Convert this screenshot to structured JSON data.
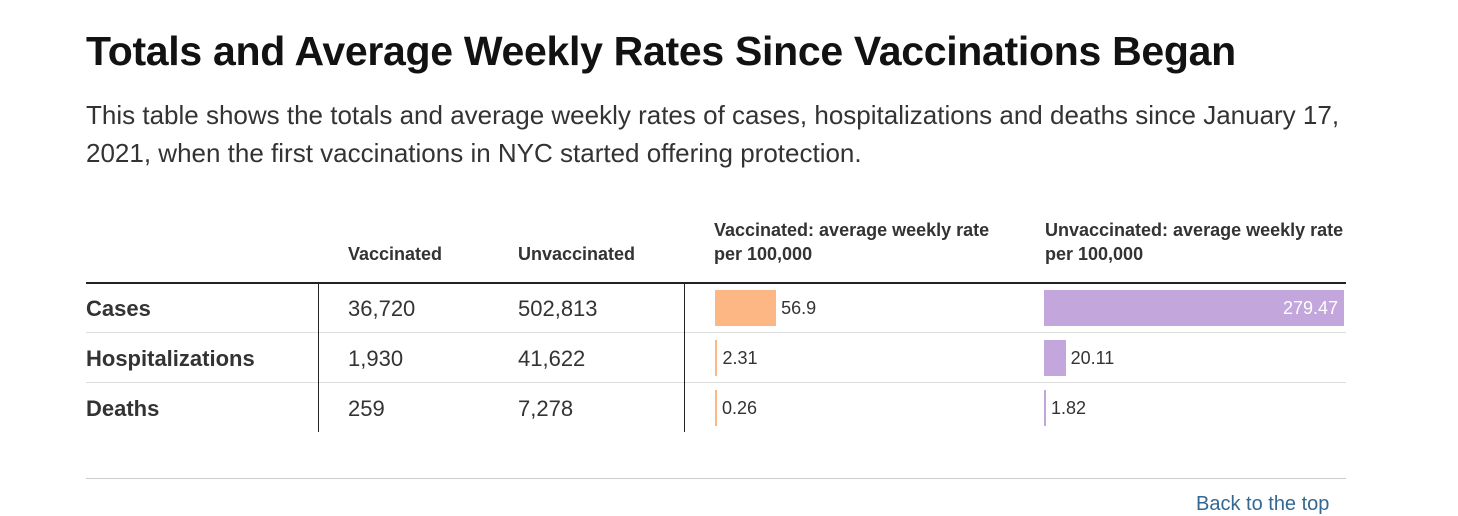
{
  "chart_data": {
    "type": "table",
    "title": "Totals and Average Weekly Rates Since Vaccinations Began",
    "subtitle": "This table shows the totals and average weekly rates of cases, hospitalizations and deaths since January 17, 2021, when the first vaccinations in NYC started offering protection.",
    "columns": [
      "Vaccinated",
      "Unvaccinated",
      "Vaccinated: average weekly rate per 100,000",
      "Unvaccinated: average weekly rate per 100,000"
    ],
    "rows": [
      {
        "label": "Cases",
        "vaccinated": "36,720",
        "unvaccinated": "502,813",
        "vax_rate": 56.9,
        "unvax_rate": 279.47,
        "vax_rate_label": "56.9",
        "unvax_rate_label": "279.47"
      },
      {
        "label": "Hospitalizations",
        "vaccinated": "1,930",
        "unvaccinated": "41,622",
        "vax_rate": 2.31,
        "unvax_rate": 20.11,
        "vax_rate_label": "2.31",
        "unvax_rate_label": "20.11"
      },
      {
        "label": "Deaths",
        "vaccinated": "259",
        "unvaccinated": "7,278",
        "vax_rate": 0.26,
        "unvax_rate": 1.82,
        "vax_rate_label": "0.26",
        "unvax_rate_label": "1.82"
      }
    ],
    "rate_max": 279.47,
    "colors": {
      "vaccinated": "#fdb785",
      "unvaccinated": "#c2a6dc"
    }
  },
  "footer": {
    "back_to_top": "Back to the top"
  }
}
